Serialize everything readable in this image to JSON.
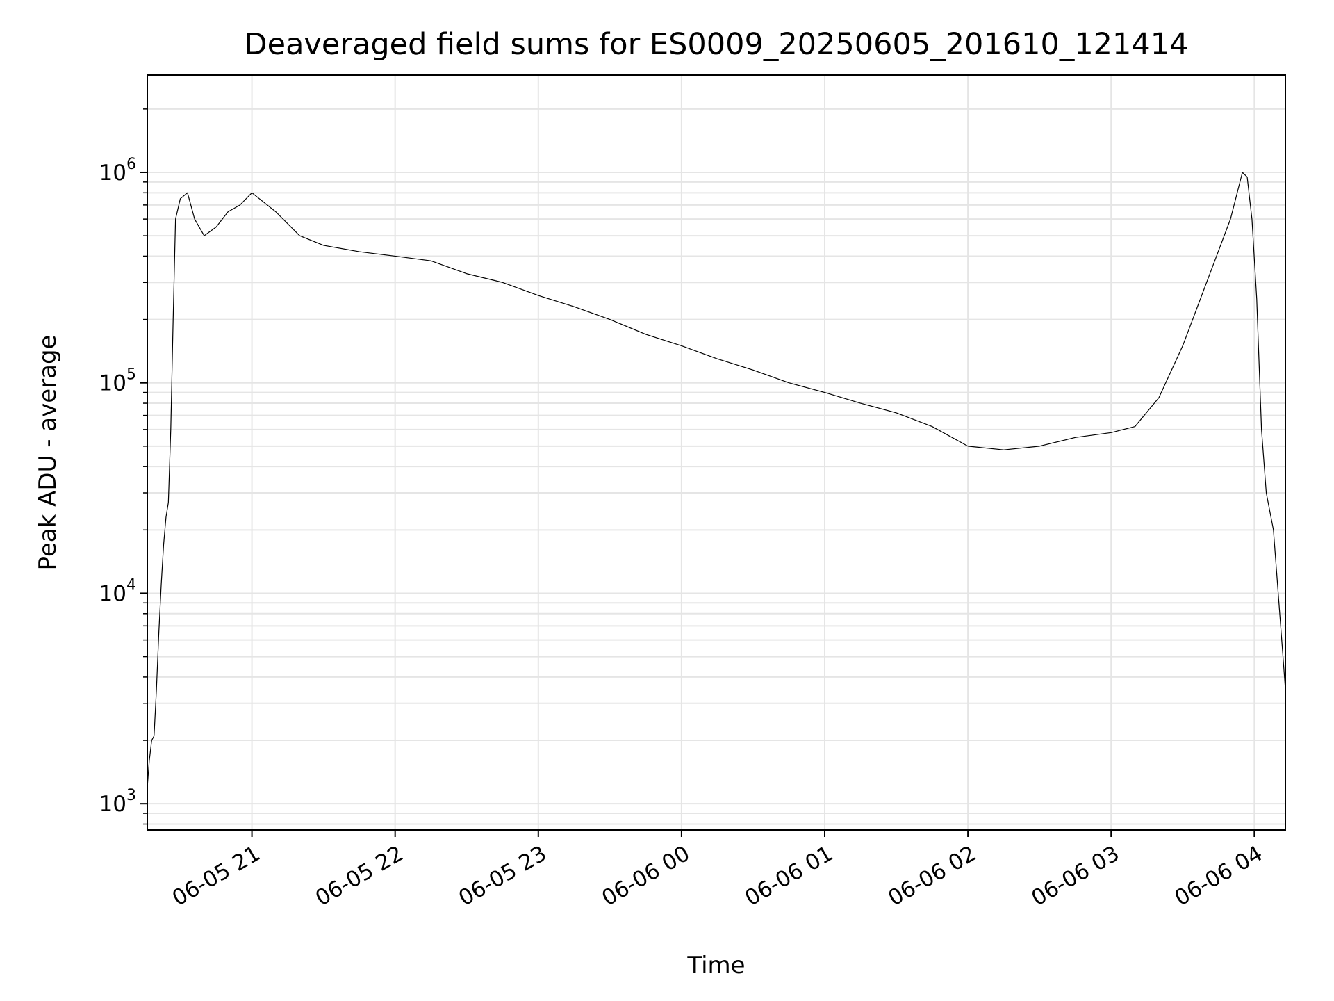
{
  "chart_data": {
    "type": "line",
    "title": "Deaveraged field sums for ES0009_20250605_201610_121414",
    "xlabel": "Time",
    "ylabel": "Peak ADU - average",
    "y_scale": "log",
    "ylim": [
      750,
      2900000
    ],
    "xlim": [
      "2025-06-05T20:16:10",
      "2025-06-06T04:13:00"
    ],
    "grid": true,
    "line_color": "#000000",
    "grid_color": "#e5e5e5",
    "x_ticks": [
      {
        "label": "06-05 21",
        "value": "2025-06-05T21:00:00"
      },
      {
        "label": "06-05 22",
        "value": "2025-06-05T22:00:00"
      },
      {
        "label": "06-05 23",
        "value": "2025-06-05T23:00:00"
      },
      {
        "label": "06-06 00",
        "value": "2025-06-06T00:00:00"
      },
      {
        "label": "06-06 01",
        "value": "2025-06-06T01:00:00"
      },
      {
        "label": "06-06 02",
        "value": "2025-06-06T02:00:00"
      },
      {
        "label": "06-06 03",
        "value": "2025-06-06T03:00:00"
      },
      {
        "label": "06-06 04",
        "value": "2025-06-06T04:00:00"
      }
    ],
    "y_ticks": [
      {
        "base": "10",
        "exp": "3",
        "value": 1000
      },
      {
        "base": "10",
        "exp": "4",
        "value": 10000
      },
      {
        "base": "10",
        "exp": "5",
        "value": 100000
      },
      {
        "base": "10",
        "exp": "6",
        "value": 1000000
      }
    ],
    "series": [
      {
        "points": [
          [
            "2025-06-05T20:16:10",
            1200
          ],
          [
            "2025-06-05T20:17:00",
            1600
          ],
          [
            "2025-06-05T20:18:00",
            2000
          ],
          [
            "2025-06-05T20:19:00",
            2100
          ],
          [
            "2025-06-05T20:20:00",
            3500
          ],
          [
            "2025-06-05T20:21:00",
            6500
          ],
          [
            "2025-06-05T20:22:00",
            11000
          ],
          [
            "2025-06-05T20:23:00",
            17000
          ],
          [
            "2025-06-05T20:24:00",
            23000
          ],
          [
            "2025-06-05T20:25:00",
            27000
          ],
          [
            "2025-06-05T20:26:00",
            60000
          ],
          [
            "2025-06-05T20:27:00",
            200000
          ],
          [
            "2025-06-05T20:28:00",
            600000
          ],
          [
            "2025-06-05T20:30:00",
            750000
          ],
          [
            "2025-06-05T20:33:00",
            800000
          ],
          [
            "2025-06-05T20:36:00",
            600000
          ],
          [
            "2025-06-05T20:40:00",
            500000
          ],
          [
            "2025-06-05T20:45:00",
            550000
          ],
          [
            "2025-06-05T20:50:00",
            650000
          ],
          [
            "2025-06-05T20:55:00",
            700000
          ],
          [
            "2025-06-05T21:00:00",
            800000
          ],
          [
            "2025-06-05T21:10:00",
            650000
          ],
          [
            "2025-06-05T21:20:00",
            500000
          ],
          [
            "2025-06-05T21:30:00",
            450000
          ],
          [
            "2025-06-05T21:45:00",
            420000
          ],
          [
            "2025-06-05T22:00:00",
            400000
          ],
          [
            "2025-06-05T22:15:00",
            380000
          ],
          [
            "2025-06-05T22:30:00",
            330000
          ],
          [
            "2025-06-05T22:45:00",
            300000
          ],
          [
            "2025-06-05T23:00:00",
            260000
          ],
          [
            "2025-06-05T23:15:00",
            230000
          ],
          [
            "2025-06-05T23:30:00",
            200000
          ],
          [
            "2025-06-05T23:45:00",
            170000
          ],
          [
            "2025-06-06T00:00:00",
            150000
          ],
          [
            "2025-06-06T00:15:00",
            130000
          ],
          [
            "2025-06-06T00:30:00",
            115000
          ],
          [
            "2025-06-06T00:45:00",
            100000
          ],
          [
            "2025-06-06T01:00:00",
            90000
          ],
          [
            "2025-06-06T01:15:00",
            80000
          ],
          [
            "2025-06-06T01:30:00",
            72000
          ],
          [
            "2025-06-06T01:45:00",
            62000
          ],
          [
            "2025-06-06T02:00:00",
            50000
          ],
          [
            "2025-06-06T02:15:00",
            48000
          ],
          [
            "2025-06-06T02:30:00",
            50000
          ],
          [
            "2025-06-06T02:45:00",
            55000
          ],
          [
            "2025-06-06T03:00:00",
            58000
          ],
          [
            "2025-06-06T03:10:00",
            62000
          ],
          [
            "2025-06-06T03:20:00",
            85000
          ],
          [
            "2025-06-06T03:30:00",
            150000
          ],
          [
            "2025-06-06T03:40:00",
            300000
          ],
          [
            "2025-06-06T03:50:00",
            600000
          ],
          [
            "2025-06-06T03:55:00",
            1000000
          ],
          [
            "2025-06-06T03:57:00",
            950000
          ],
          [
            "2025-06-06T03:59:00",
            600000
          ],
          [
            "2025-06-06T04:01:00",
            250000
          ],
          [
            "2025-06-06T04:03:00",
            60000
          ],
          [
            "2025-06-06T04:05:00",
            30000
          ],
          [
            "2025-06-06T04:08:00",
            20000
          ],
          [
            "2025-06-06T04:10:00",
            10000
          ],
          [
            "2025-06-06T04:12:00",
            5000
          ],
          [
            "2025-06-06T04:13:00",
            3500
          ]
        ]
      }
    ]
  }
}
